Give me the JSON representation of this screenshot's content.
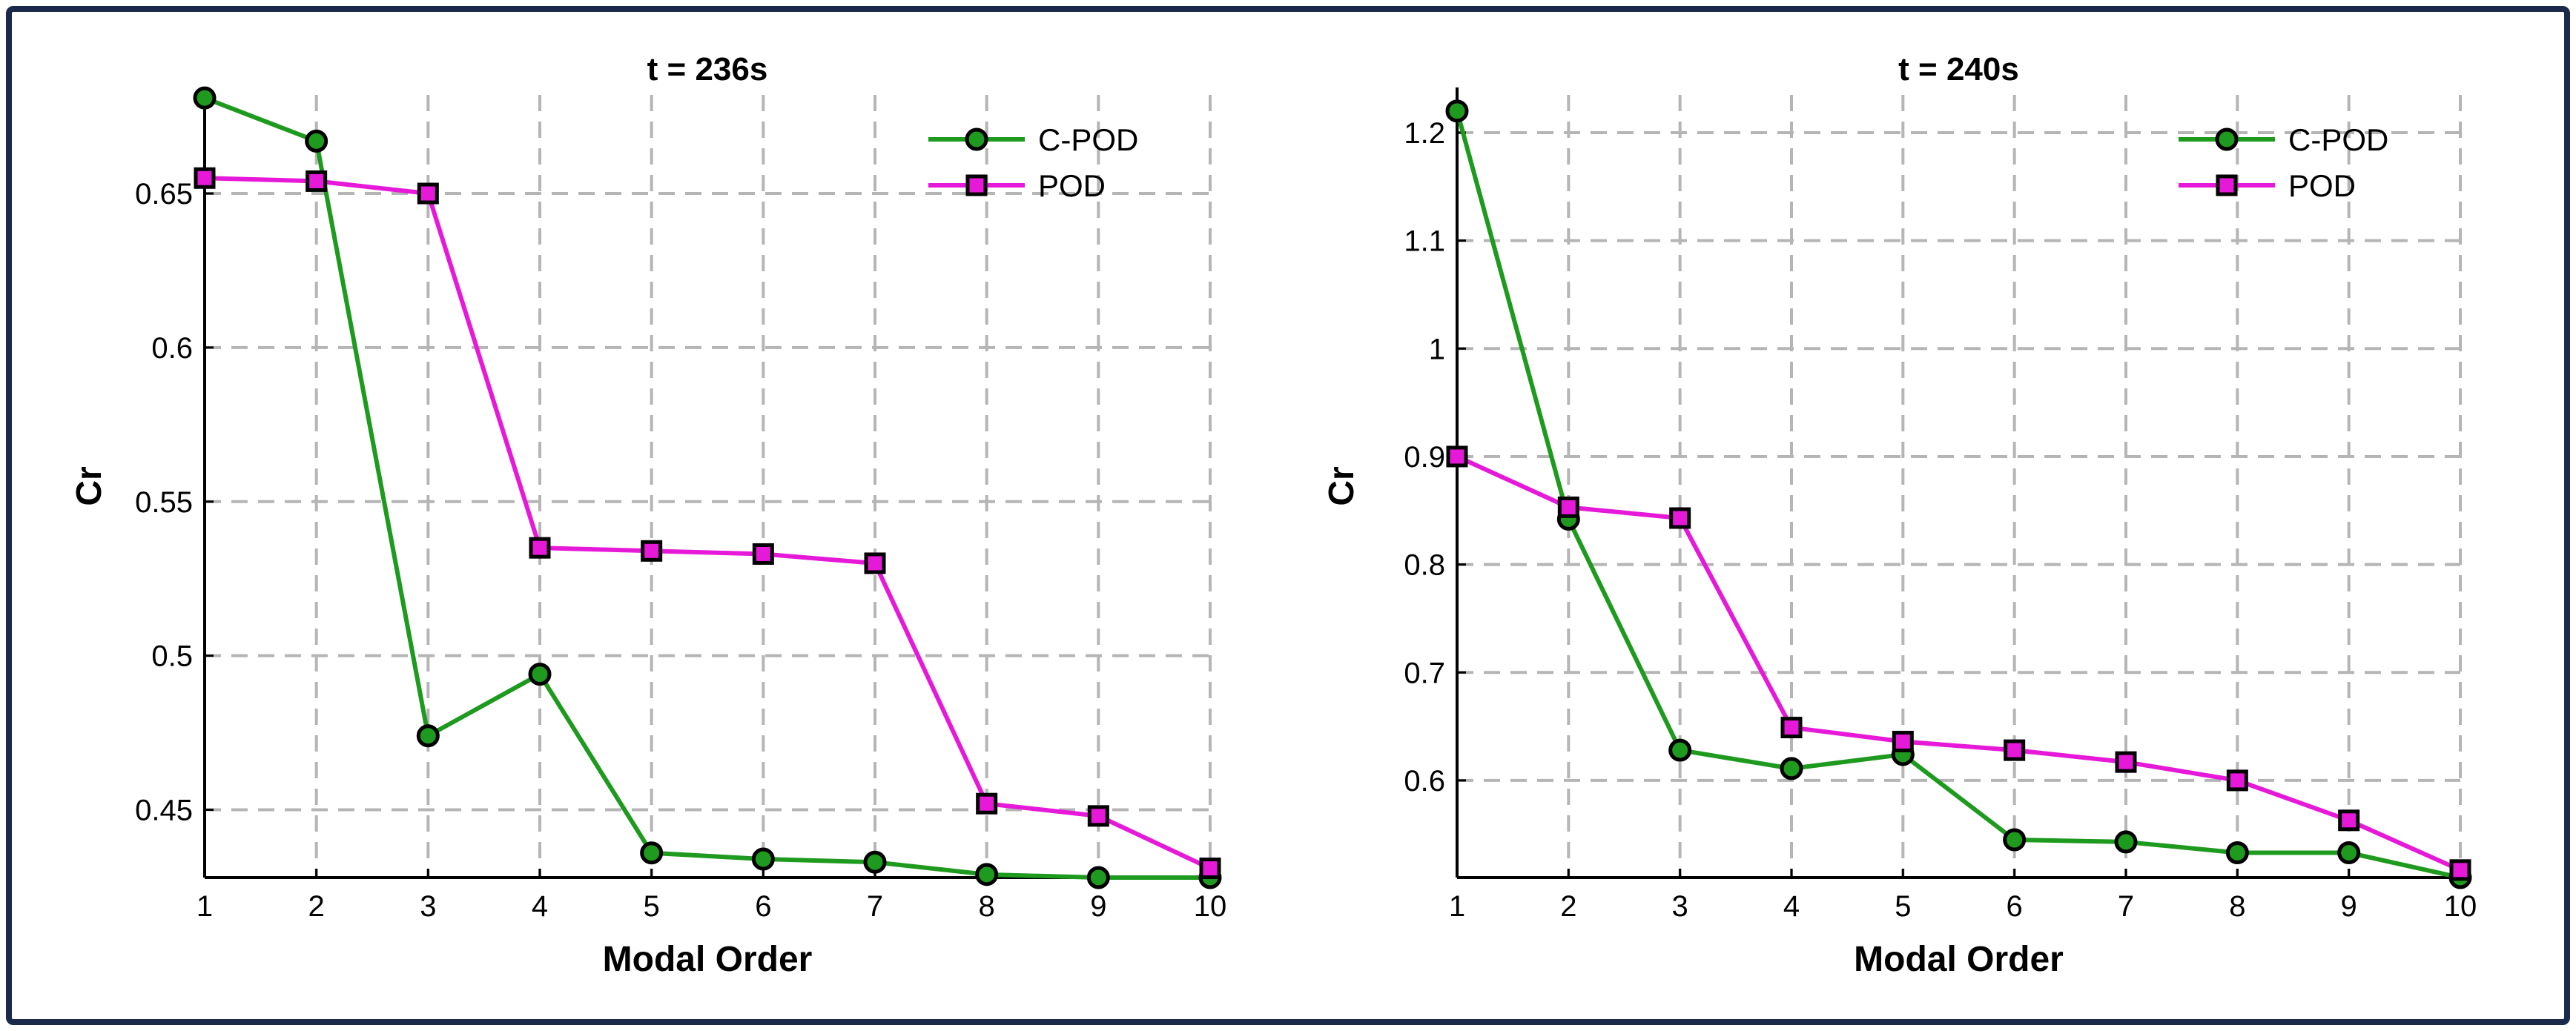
{
  "chart_data": [
    {
      "type": "line",
      "title": "t = 236s",
      "xlabel": "Modal Order",
      "ylabel": "Cr",
      "x": [
        1,
        2,
        3,
        4,
        5,
        6,
        7,
        8,
        9,
        10
      ],
      "xlim": [
        1,
        10
      ],
      "ylim": [
        0.428,
        0.682
      ],
      "xticks": [
        "1",
        "2",
        "3",
        "4",
        "5",
        "6",
        "7",
        "8",
        "9",
        "10"
      ],
      "yticks": [
        {
          "value": 0.45,
          "label": "0.45"
        },
        {
          "value": 0.5,
          "label": "0.5"
        },
        {
          "value": 0.55,
          "label": "0.55"
        },
        {
          "value": 0.6,
          "label": "0.6"
        },
        {
          "value": 0.65,
          "label": "0.65"
        }
      ],
      "grid": true,
      "legend": "top-right",
      "series": [
        {
          "name": "C-POD",
          "color": "#1e9a1e",
          "marker": "circle",
          "values": [
            0.681,
            0.667,
            0.474,
            0.494,
            0.436,
            0.434,
            0.433,
            0.429,
            0.428,
            0.428
          ]
        },
        {
          "name": "POD",
          "color": "#e619d9",
          "marker": "square",
          "values": [
            0.655,
            0.654,
            0.65,
            0.535,
            0.534,
            0.533,
            0.53,
            0.452,
            0.448,
            0.431
          ]
        }
      ]
    },
    {
      "type": "line",
      "title": "t = 240s",
      "xlabel": "Modal Order",
      "ylabel": "Cr",
      "x": [
        1,
        2,
        3,
        4,
        5,
        6,
        7,
        8,
        9,
        10
      ],
      "xlim": [
        1,
        10
      ],
      "ylim": [
        0.51,
        1.235
      ],
      "xticks": [
        "1",
        "2",
        "3",
        "4",
        "5",
        "6",
        "7",
        "8",
        "9",
        "10"
      ],
      "yticks": [
        {
          "value": 0.6,
          "label": "0.6"
        },
        {
          "value": 0.7,
          "label": "0.7"
        },
        {
          "value": 0.8,
          "label": "0.8"
        },
        {
          "value": 0.9,
          "label": "0.9"
        },
        {
          "value": 1.0,
          "label": "1"
        },
        {
          "value": 1.1,
          "label": "1.1"
        },
        {
          "value": 1.2,
          "label": "1.2"
        }
      ],
      "grid": true,
      "legend": "top-right",
      "series": [
        {
          "name": "C-POD",
          "color": "#1e9a1e",
          "marker": "circle",
          "values": [
            1.22,
            0.842,
            0.628,
            0.611,
            0.624,
            0.545,
            0.543,
            0.533,
            0.533,
            0.51
          ]
        },
        {
          "name": "POD",
          "color": "#e619d9",
          "marker": "square",
          "values": [
            0.9,
            0.853,
            0.843,
            0.649,
            0.636,
            0.628,
            0.617,
            0.6,
            0.563,
            0.517
          ]
        }
      ]
    }
  ]
}
